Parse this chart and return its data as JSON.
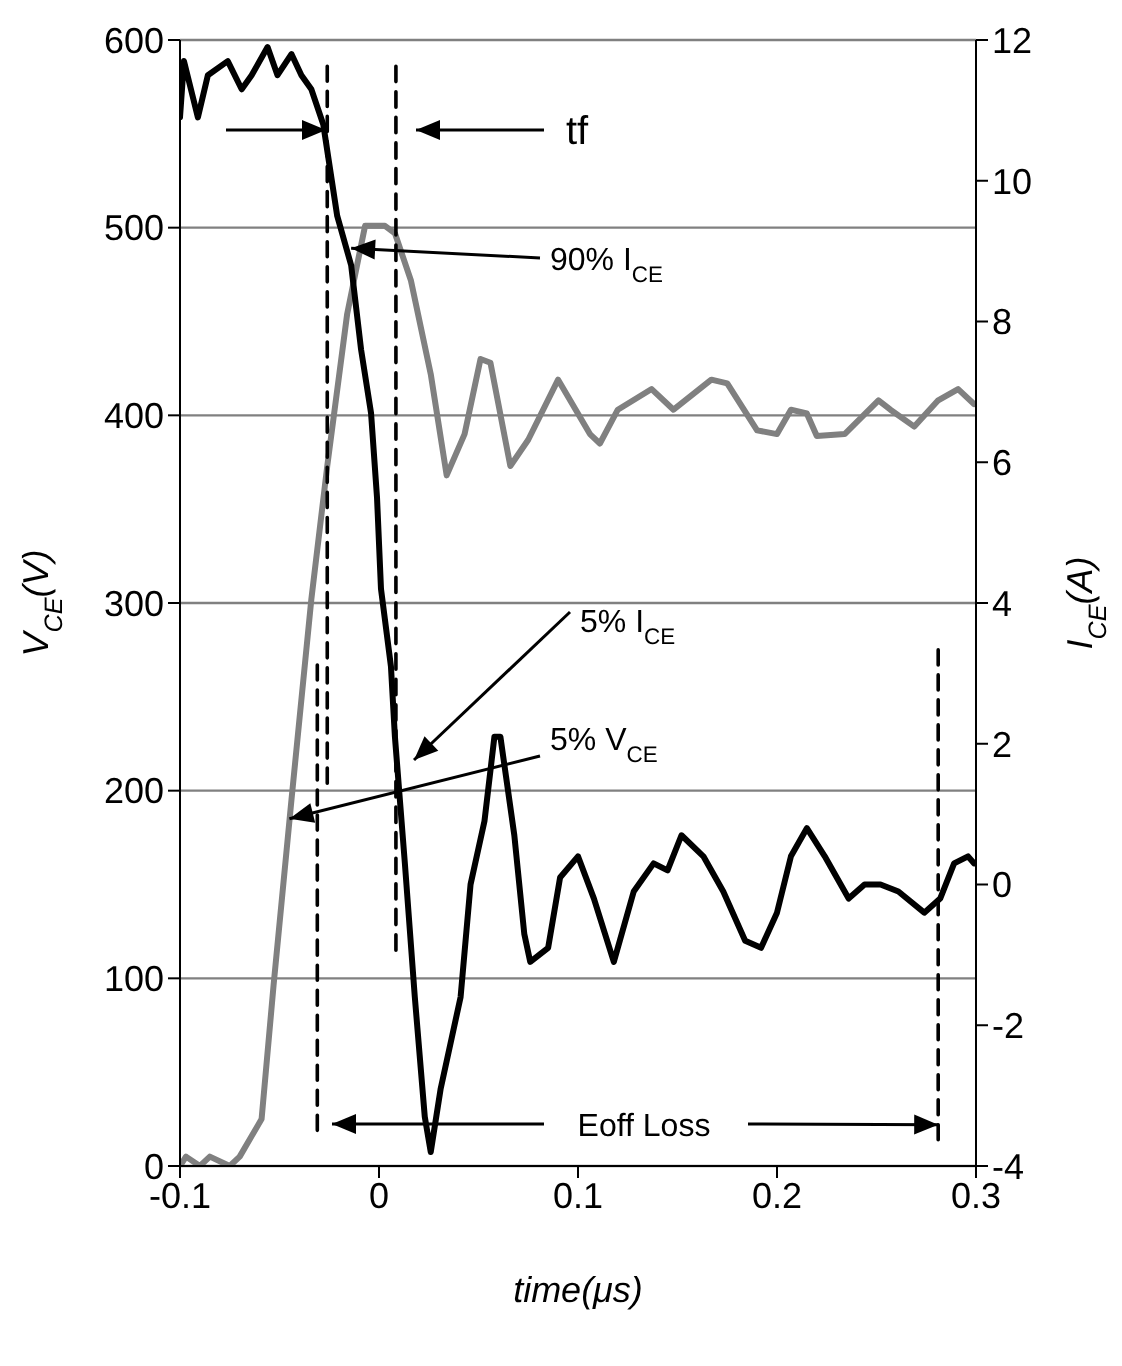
{
  "chart_data": {
    "type": "line",
    "xlabel": "time(μs)",
    "ylabel": "V$_{CE}$(V)",
    "y2label": "I$_{CE}$(A)",
    "xlim": [
      -0.1,
      0.3
    ],
    "xticks": [
      -0.1,
      0,
      0.1,
      0.2,
      0.3
    ],
    "ylim": [
      0,
      600
    ],
    "yticks": [
      0,
      100,
      200,
      300,
      400,
      500,
      600
    ],
    "y2lim": [
      -4,
      12
    ],
    "y2ticks": [
      -4,
      -2,
      0,
      2,
      4,
      6,
      8,
      10,
      12
    ],
    "grid": "y",
    "annotations": [
      "tf",
      {
        "text": "90% I$_{CE}$",
        "x": -0.014,
        "y": 489
      },
      "5% I$_{CE}$",
      {
        "text": "5% V$_{CE}$",
        "x": -0.045,
        "y": 185
      },
      {
        "text": "Eoff Loss",
        "x": 0.281,
        "y": 22
      }
    ],
    "series": [
      {
        "color": "#808080",
        "x": [
          -0.1,
          -0.097,
          -0.09,
          -0.085,
          -0.075,
          -0.07,
          -0.059,
          -0.053,
          -0.044,
          -0.034,
          -0.026,
          -0.016,
          -0.007,
          0.003,
          0.008,
          0.016,
          0.026,
          0.034,
          0.043,
          0.051,
          0.056,
          0.066,
          0.075,
          0.09,
          0.106,
          0.111,
          0.12,
          0.137,
          0.148,
          0.167,
          0.175,
          0.19,
          0.2,
          0.207,
          0.215,
          0.22,
          0.234,
          0.251,
          0.257,
          0.269,
          0.281,
          0.291,
          0.299
        ],
        "values": [
          0,
          5,
          0,
          5,
          0,
          5,
          25,
          96,
          195,
          302,
          373,
          454,
          501,
          501,
          497,
          472,
          422,
          368,
          390,
          430,
          428,
          373,
          387,
          419,
          390,
          385,
          403,
          414,
          403,
          419,
          417,
          392,
          390,
          403,
          401,
          389,
          390,
          408,
          403,
          394,
          408,
          414,
          406
        ]
      },
      {
        "color": "#000000",
        "axis": "y2",
        "x": [
          -0.1,
          -0.098,
          -0.091,
          -0.086,
          -0.076,
          -0.069,
          -0.064,
          -0.056,
          -0.051,
          -0.044,
          -0.039,
          -0.034,
          -0.028,
          -0.021,
          -0.014,
          -0.009,
          -0.004,
          -0.001,
          0.001,
          0.006,
          0.008,
          0.013,
          0.018,
          0.023,
          0.026,
          0.031,
          0.041,
          0.046,
          0.053,
          0.058,
          0.061,
          0.068,
          0.073,
          0.076,
          0.085,
          0.091,
          0.1,
          0.108,
          0.118,
          0.128,
          0.138,
          0.145,
          0.152,
          0.163,
          0.173,
          0.184,
          0.192,
          0.2,
          0.207,
          0.215,
          0.224,
          0.236,
          0.244,
          0.252,
          0.261,
          0.274,
          0.282,
          0.289,
          0.296,
          0.299
        ],
        "values": [
          10.9,
          11.7,
          10.9,
          11.5,
          11.7,
          11.3,
          11.5,
          11.9,
          11.5,
          11.8,
          11.5,
          11.3,
          10.8,
          9.5,
          8.8,
          7.6,
          6.7,
          5.5,
          4.2,
          3.1,
          2.1,
          0.3,
          -1.6,
          -3.3,
          -3.8,
          -2.9,
          -1.6,
          0,
          0.9,
          2.1,
          2.1,
          0.7,
          -0.7,
          -1.1,
          -0.9,
          0.1,
          0.4,
          -0.2,
          -1.1,
          -0.1,
          0.3,
          0.2,
          0.7,
          0.4,
          -0.1,
          -0.8,
          -0.9,
          -0.4,
          0.4,
          0.8,
          0.4,
          -0.2,
          0,
          0,
          -0.1,
          -0.4,
          -0.2,
          0.3,
          0.4,
          0.3
        ]
      },
      {
        "color": "#000000",
        "line_style": "dashed",
        "x": [
          -0.026,
          -0.026
        ],
        "values": [
          586,
          204
        ]
      },
      {
        "color": "#000000",
        "line_style": "dashed",
        "x": [
          -0.031,
          -0.031
        ],
        "values": [
          267,
          19
        ]
      },
      {
        "color": "#000000",
        "line_style": "dashed",
        "x": [
          0.0085,
          0.0085
        ],
        "values": [
          586,
          115
        ]
      },
      {
        "color": "#000000",
        "line_style": "dashed",
        "x": [
          0.281,
          0.281
        ],
        "values": [
          275,
          14
        ]
      }
    ]
  }
}
